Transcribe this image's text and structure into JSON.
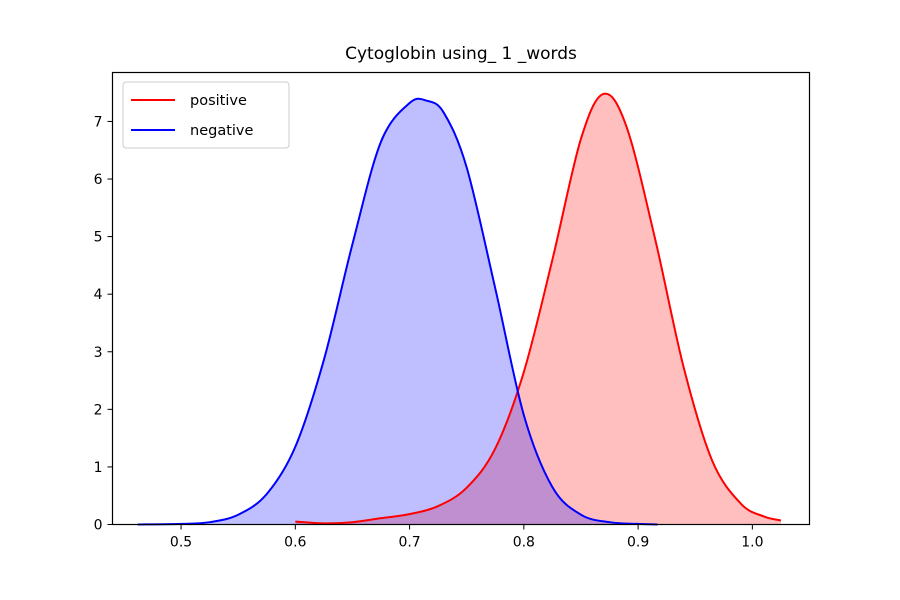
{
  "chart_data": {
    "type": "area",
    "title": "Cytoglobin using_ 1 _words",
    "xlabel": "",
    "ylabel": "",
    "xlim": [
      0.44,
      1.05
    ],
    "ylim": [
      0,
      7.85
    ],
    "xticks": [
      0.5,
      0.6,
      0.7,
      0.8,
      0.9,
      1.0
    ],
    "xtick_labels": [
      "0.5",
      "0.6",
      "0.7",
      "0.8",
      "0.9",
      "1.0"
    ],
    "yticks": [
      0,
      1,
      2,
      3,
      4,
      5,
      6,
      7
    ],
    "ytick_labels": [
      "0",
      "1",
      "2",
      "3",
      "4",
      "5",
      "6",
      "7"
    ],
    "grid": false,
    "legend_position": "top-left",
    "series": [
      {
        "name": "positive",
        "color": "#ff0000",
        "fill_color": "#ff0000",
        "fill_opacity": 0.25,
        "x": [
          0.6,
          0.625,
          0.65,
          0.675,
          0.7,
          0.725,
          0.75,
          0.775,
          0.8,
          0.825,
          0.85,
          0.87,
          0.89,
          0.915,
          0.94,
          0.965,
          0.99,
          1.01,
          1.025
        ],
        "y": [
          0.05,
          0.02,
          0.04,
          0.11,
          0.18,
          0.32,
          0.64,
          1.32,
          2.65,
          4.6,
          6.7,
          7.48,
          6.9,
          4.95,
          2.72,
          1.1,
          0.36,
          0.14,
          0.07
        ]
      },
      {
        "name": "negative",
        "color": "#0000ff",
        "fill_color": "#0000ff",
        "fill_opacity": 0.25,
        "x": [
          0.462,
          0.5,
          0.525,
          0.55,
          0.575,
          0.6,
          0.625,
          0.65,
          0.675,
          0.7,
          0.715,
          0.73,
          0.75,
          0.775,
          0.8,
          0.825,
          0.85,
          0.875,
          0.9,
          0.917
        ],
        "y": [
          0.0,
          0.01,
          0.04,
          0.17,
          0.53,
          1.35,
          2.86,
          4.87,
          6.65,
          7.32,
          7.36,
          7.15,
          6.2,
          4.1,
          1.9,
          0.65,
          0.17,
          0.04,
          0.01,
          0.0
        ]
      }
    ]
  }
}
